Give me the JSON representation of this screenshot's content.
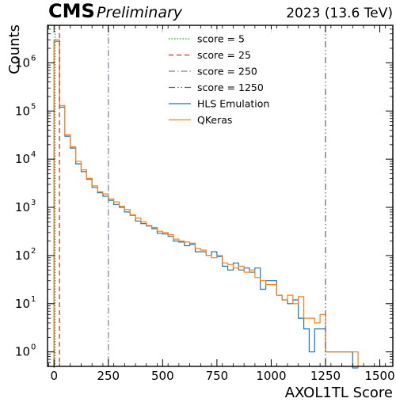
{
  "header": {
    "experiment": "CMS",
    "status": "Preliminary",
    "energy_label": "2023 (13.6 TeV)"
  },
  "chart_data": {
    "type": "step-histogram",
    "xlabel": "AXOL1TL Score",
    "ylabel": "Counts",
    "xlim": [
      -30,
      1560
    ],
    "ylim": [
      0.5,
      6000000
    ],
    "y_scale": "log",
    "grid": false,
    "legend_position": "top-center",
    "x_ticks": [
      "0",
      "250",
      "500",
      "750",
      "1000",
      "1250",
      "1500"
    ],
    "x_tick_values": [
      0,
      250,
      500,
      750,
      1000,
      1250,
      1500
    ],
    "y_ticks": [
      "10^0",
      "10^1",
      "10^2",
      "10^3",
      "10^4",
      "10^5",
      "10^6"
    ],
    "y_tick_exponents": [
      0,
      1,
      2,
      3,
      4,
      5,
      6
    ],
    "bin_edges": [
      0,
      25,
      50,
      75,
      100,
      125,
      150,
      175,
      200,
      225,
      250,
      275,
      300,
      325,
      350,
      375,
      400,
      425,
      450,
      475,
      500,
      525,
      550,
      575,
      600,
      625,
      650,
      675,
      700,
      725,
      750,
      775,
      800,
      825,
      850,
      875,
      900,
      925,
      950,
      975,
      1000,
      1025,
      1050,
      1075,
      1100,
      1125,
      1150,
      1175,
      1200,
      1225,
      1250,
      1275,
      1300,
      1325,
      1350,
      1375,
      1400
    ],
    "thresholds": [
      {
        "name": "score = 5",
        "value": 5,
        "color": "#2ca02c",
        "style": "dotted"
      },
      {
        "name": "score = 25",
        "value": 25,
        "color": "#d62728",
        "style": "dashed"
      },
      {
        "name": "score = 250",
        "value": 250,
        "color": "#7f7f9f",
        "style": "dashdot"
      },
      {
        "name": "score = 1250",
        "value": 1250,
        "color": "#6a5a8a",
        "style": "dashdotdot"
      }
    ],
    "series": [
      {
        "name": "HLS Emulation",
        "color": "#1f77b4",
        "values": [
          2800000,
          120000,
          30000,
          17000,
          8000,
          5500,
          3800,
          2600,
          2000,
          1700,
          1400,
          1150,
          1000,
          800,
          680,
          520,
          460,
          410,
          360,
          290,
          280,
          250,
          200,
          190,
          160,
          170,
          120,
          120,
          100,
          120,
          95,
          60,
          50,
          70,
          50,
          55,
          45,
          55,
          20,
          30,
          30,
          15,
          12,
          10,
          12,
          5,
          3,
          1,
          3,
          3,
          1,
          1,
          1,
          1,
          1,
          0
        ]
      },
      {
        "name": "QKeras",
        "color": "#ff7f0e",
        "values": [
          3000000,
          130000,
          32000,
          18000,
          9000,
          6000,
          4000,
          2800,
          2100,
          1900,
          1500,
          1300,
          1050,
          900,
          700,
          600,
          500,
          420,
          380,
          320,
          300,
          270,
          220,
          200,
          190,
          180,
          140,
          130,
          100,
          90,
          100,
          70,
          65,
          55,
          60,
          45,
          50,
          35,
          30,
          25,
          25,
          15,
          12,
          15,
          10,
          14,
          5,
          5,
          4,
          6,
          1,
          1,
          1,
          1,
          1,
          1
        ]
      }
    ]
  }
}
